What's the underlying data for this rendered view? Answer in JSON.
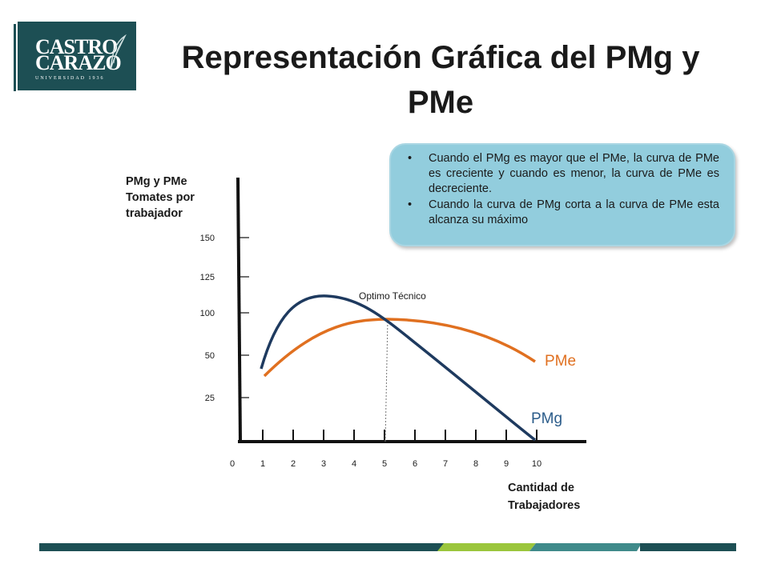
{
  "logo": {
    "line1": "CASTRO",
    "line2": "CARAZO",
    "subtitle": "UNIVERSIDAD 1936"
  },
  "title": "Representación Gráfica del PMg y PMe",
  "callout": {
    "bullet": "•",
    "items": [
      "Cuando el PMg es mayor que el PMe, la curva de PMe es creciente y cuando es menor, la curva de PMe es decreciente.",
      "Cuando la curva de PMg corta a la curva de PMe esta alcanza su máximo"
    ]
  },
  "axes": {
    "y_label": "PMg y PMe Tomates por trabajador",
    "x_label": "Cantidad de Trabajadores",
    "y_ticks": [
      "150",
      "125",
      "100",
      "50",
      "25"
    ],
    "x_ticks": [
      "0",
      "1",
      "2",
      "3",
      "4",
      "5",
      "6",
      "7",
      "8",
      "9",
      "10"
    ]
  },
  "annotations": {
    "optimo": "Optimo Técnico"
  },
  "curves": {
    "pme_label": "PMe",
    "pmg_label": "PMg",
    "pme_color": "#e07020",
    "pmg_color": "#1e3a5f"
  },
  "colors": {
    "logo_bg": "#1d4f54",
    "callout_bg": "#92cddd",
    "footer_dark": "#1d4f54",
    "footer_light": "#9bc63c",
    "footer_teal": "#3f8a8a"
  }
}
